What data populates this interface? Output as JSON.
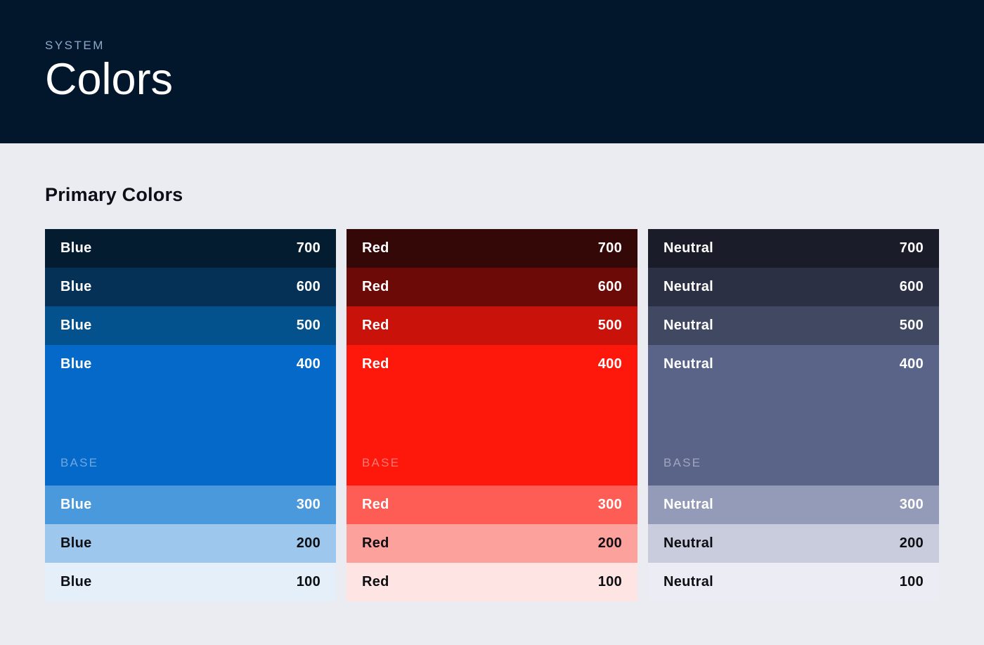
{
  "header": {
    "eyebrow": "SYSTEM",
    "title": "Colors",
    "bg": "#02172B",
    "eyebrow_color": "#8FA9CD",
    "title_color": "#FFFFFF"
  },
  "page": {
    "bg": "#EBEBF2",
    "section_title": "Primary Colors",
    "section_title_color": "#0E0F16"
  },
  "base_label": "BASE",
  "palettes": [
    {
      "name": "Blue",
      "swatches": [
        {
          "label": "Blue",
          "value": "700",
          "color": "#041C30",
          "text": "#FFFFFF"
        },
        {
          "label": "Blue",
          "value": "600",
          "color": "#053157",
          "text": "#FFFFFF"
        },
        {
          "label": "Blue",
          "value": "500",
          "color": "#03518D",
          "text": "#FFFFFF"
        },
        {
          "label": "Blue",
          "value": "400",
          "color": "#0569C9",
          "text": "#FFFFFF",
          "base": true
        },
        {
          "label": "Blue",
          "value": "300",
          "color": "#4A99DC",
          "text": "#FFFFFF"
        },
        {
          "label": "Blue",
          "value": "200",
          "color": "#9DC7EC",
          "text": "#0D0E12"
        },
        {
          "label": "Blue",
          "value": "100",
          "color": "#E4EFFA",
          "text": "#0D0E12"
        }
      ]
    },
    {
      "name": "Red",
      "swatches": [
        {
          "label": "Red",
          "value": "700",
          "color": "#350808",
          "text": "#FFFFFF"
        },
        {
          "label": "Red",
          "value": "600",
          "color": "#6C0A08",
          "text": "#FFFFFF"
        },
        {
          "label": "Red",
          "value": "500",
          "color": "#C91209",
          "text": "#FFFFFF"
        },
        {
          "label": "Red",
          "value": "400",
          "color": "#FE170B",
          "text": "#FFFFFF",
          "base": true
        },
        {
          "label": "Red",
          "value": "300",
          "color": "#FD5D54",
          "text": "#FFFFFF"
        },
        {
          "label": "Red",
          "value": "200",
          "color": "#FDA19C",
          "text": "#0D0E12"
        },
        {
          "label": "Red",
          "value": "100",
          "color": "#FEE5E4",
          "text": "#0D0E12"
        }
      ]
    },
    {
      "name": "Neutral",
      "swatches": [
        {
          "label": "Neutral",
          "value": "700",
          "color": "#1A1D29",
          "text": "#FFFFFF"
        },
        {
          "label": "Neutral",
          "value": "600",
          "color": "#2B3044",
          "text": "#FFFFFF"
        },
        {
          "label": "Neutral",
          "value": "500",
          "color": "#414861",
          "text": "#FFFFFF"
        },
        {
          "label": "Neutral",
          "value": "400",
          "color": "#5A6489",
          "text": "#FFFFFF",
          "base": true
        },
        {
          "label": "Neutral",
          "value": "300",
          "color": "#939BB8",
          "text": "#FFFFFF"
        },
        {
          "label": "Neutral",
          "value": "200",
          "color": "#C9CCDC",
          "text": "#0D0E12"
        },
        {
          "label": "Neutral",
          "value": "100",
          "color": "#ECECF4",
          "text": "#0D0E12"
        }
      ]
    }
  ]
}
